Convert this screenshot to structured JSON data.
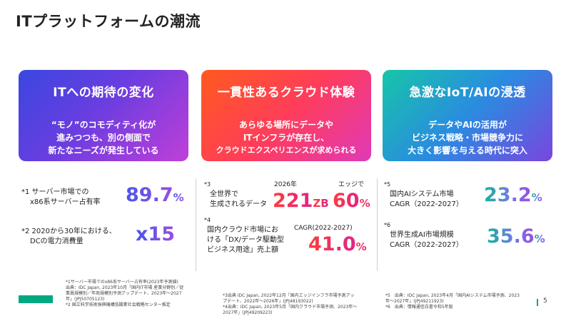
{
  "title": "ITプラットフォームの潮流",
  "cards": [
    {
      "title": "ITへの期待の変化",
      "lines": [
        "“モノ”のコモディティ化が",
        "進みつつも、別の側面で",
        "新たなニーズが発生している"
      ]
    },
    {
      "title": "一貫性あるクラウド体験",
      "lines": [
        "あらゆる場所にデータや",
        "ITインフラが存在し、",
        "クラウドエクスペリエンスが求められる"
      ]
    },
    {
      "title": "急激なIoT/AIの浸透",
      "lines": [
        "データやAIの活用が",
        "ビジネス戦略・市場競争力に",
        "大きく影響を与える時代に突入"
      ]
    }
  ],
  "col1": {
    "s1": {
      "label1": "*1 サーバー市場での",
      "label2": "x86系サーバー占有率",
      "value": "89.7",
      "unit": "%"
    },
    "s2": {
      "label1": "*2 2020から30年における、",
      "label2": "DCの電力消費量",
      "value": "x15"
    }
  },
  "col2": {
    "s3": {
      "mark": "*3",
      "label1": "全世界で",
      "label2": "生成されるデータ",
      "head1": "2026年",
      "value1": "221",
      "unit1": "ZB",
      "head2": "エッジで",
      "value2": "60",
      "unit2": "%"
    },
    "s4": {
      "mark": "*4",
      "label1": "国内クラウド市場にお",
      "label2": "ける「DX/データ駆動型",
      "label3": "ビジネス用途」売上額",
      "head": "CAGR(2022-2027)",
      "value": "41.0",
      "unit": "%"
    }
  },
  "col3": {
    "s5": {
      "mark": "*5",
      "label1": "国内AIシステム市場",
      "label2": "CAGR（2022-2027）",
      "value": "23.2",
      "unit": "%"
    },
    "s6": {
      "mark": "*6",
      "label1": "世界生成AI市場規模",
      "label2": "CAGR（2022-2027）",
      "value": "35.6",
      "unit": "%"
    }
  },
  "footnotes": {
    "left": [
      "*1サーバー市場でのx86系サーバー占有率(2023年予測値)",
      "出典：IDC Japan, 2023年10月「国内IT市場 産業分野別／従",
      "業員規模別／年商規模別予測アップデート、2023年～2027",
      "年」(JPJ50705123)",
      "*2 国立科学技術振興機構低酸素社会戦略センター推定"
    ],
    "middle": [
      "*3出典 IDC Japan, 2022年12月「国内エッジインフラ市場予測アッ",
      "プデート、2022年～2026年」(JPJ48193022)",
      "*4出典：IDC Japan, 2023年5月「国内クラウド市場予測、2023年～",
      "2027年」(JPJ49209223)"
    ],
    "right": [
      "*5　出典：IDC Japan, 2023年4月「国内AIシステム市場予測、2023",
      "年～2027年」(JPJ49211923)",
      "*6　出典：情報通信白書令和5年版"
    ]
  },
  "page_number": "5",
  "colors": {
    "accent": "#01a982"
  }
}
